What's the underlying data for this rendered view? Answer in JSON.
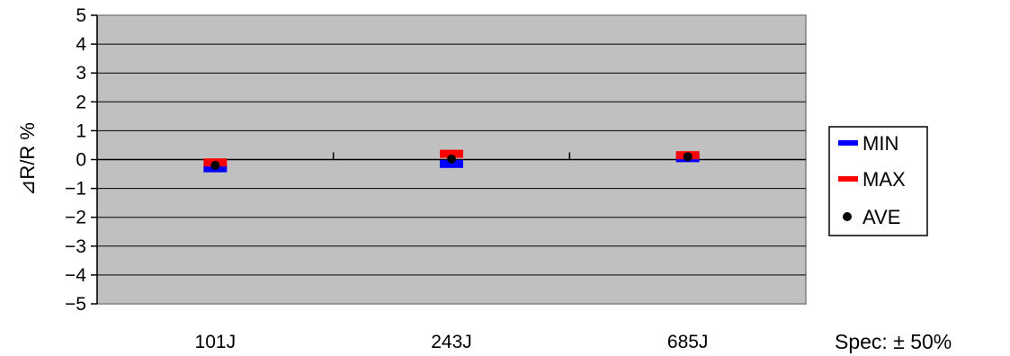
{
  "chart_data": {
    "type": "scatter",
    "title": "",
    "xlabel": "",
    "ylabel": "⊿R/R %",
    "categories": [
      "101J",
      "243J",
      "685J"
    ],
    "ylim": [
      -5,
      5
    ],
    "yticks": [
      5,
      4,
      3,
      2,
      1,
      0,
      -1,
      -2,
      -3,
      -4,
      -5
    ],
    "ytick_labels": [
      "5",
      "4",
      "3",
      "2",
      "1",
      "0",
      "−1",
      "−2",
      "−3",
      "−4",
      "−5"
    ],
    "grid": true,
    "legend_position": "right",
    "series": [
      {
        "name": "MIN",
        "marker": "dash",
        "color": "#0000ff",
        "values": [
          -0.3,
          -0.15,
          0.05
        ]
      },
      {
        "name": "MAX",
        "marker": "dash",
        "color": "#ff0000",
        "values": [
          -0.1,
          0.2,
          0.15
        ]
      },
      {
        "name": "AVE",
        "marker": "dot",
        "color": "#000000",
        "values": [
          -0.2,
          0.02,
          0.1
        ]
      }
    ],
    "annotation": "Spec:  ± 50%"
  }
}
